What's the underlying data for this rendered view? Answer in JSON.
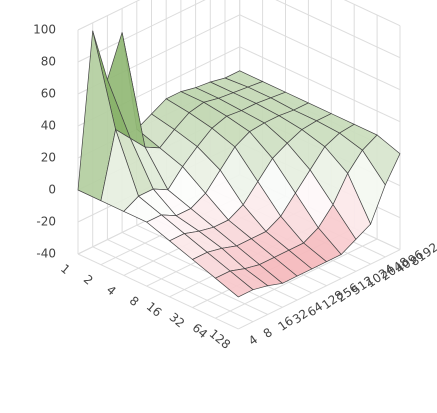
{
  "chart_data": {
    "type": "surface",
    "x": [
      "1",
      "2",
      "4",
      "8",
      "16",
      "32",
      "64",
      "128"
    ],
    "y": [
      "4",
      "8",
      "16",
      "32",
      "64",
      "128",
      "256",
      "512",
      "1024",
      "2048",
      "4096",
      "8192"
    ],
    "values": [
      [
        0,
        95,
        60,
        85,
        20,
        25,
        30,
        30,
        28,
        27,
        25,
        25
      ],
      [
        0,
        40,
        30,
        20,
        15,
        22,
        28,
        30,
        28,
        27,
        26,
        25
      ],
      [
        0,
        5,
        5,
        0,
        10,
        18,
        25,
        28,
        27,
        27,
        26,
        25
      ],
      [
        0,
        0,
        -5,
        -5,
        0,
        10,
        20,
        25,
        26,
        26,
        25,
        25
      ],
      [
        -5,
        -5,
        -8,
        -10,
        -10,
        -5,
        5,
        15,
        20,
        24,
        25,
        25
      ],
      [
        -10,
        -10,
        -12,
        -15,
        -15,
        -15,
        -10,
        0,
        10,
        20,
        24,
        25
      ],
      [
        -15,
        -15,
        -18,
        -20,
        -20,
        -20,
        -20,
        -15,
        -5,
        10,
        20,
        25
      ],
      [
        -20,
        -20,
        -22,
        -25,
        -25,
        -25,
        -25,
        -25,
        -20,
        -15,
        5,
        20
      ]
    ],
    "zlim": [
      -40,
      100
    ],
    "zticks": [
      -40,
      -20,
      0,
      20,
      40,
      60,
      80,
      100
    ],
    "colors": {
      "high": "#4a8a1c",
      "mid": "#ffffff",
      "low": "#f4b4b8"
    }
  }
}
